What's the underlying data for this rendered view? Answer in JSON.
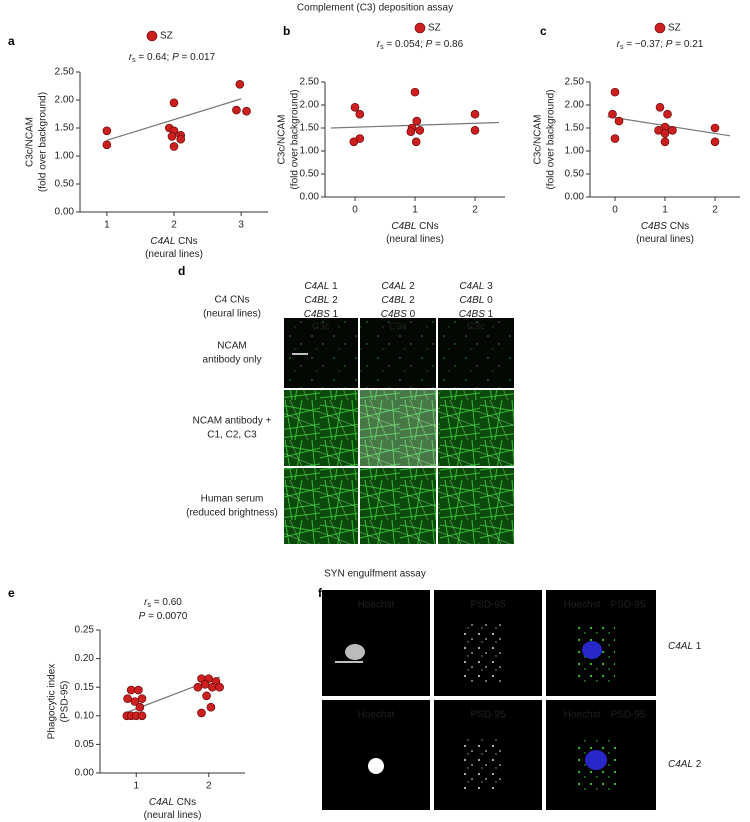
{
  "title": "Complement (C3) deposition assay",
  "chart_data": [
    {
      "type": "scatter",
      "panel": "a",
      "legend": true,
      "annotation": [
        [
          {
            "text": "r",
            "style": "italic"
          },
          {
            "text": "s",
            "style": "sub"
          },
          {
            "text": " = 0.64; "
          },
          {
            "text": "P",
            "style": "italic"
          },
          {
            "text": " = 0.017"
          }
        ]
      ],
      "xlabel": [
        [
          {
            "text": "C4AL",
            "style": "italic"
          },
          {
            "text": " CNs"
          }
        ],
        [
          {
            "text": "(neural lines)"
          }
        ]
      ],
      "ylabel": [
        "C3c/NCAM",
        "(fold over background)"
      ],
      "xlim": [
        0.6,
        3.4
      ],
      "xticks": [
        1,
        2,
        3
      ],
      "ylim": [
        0,
        2.5
      ],
      "yticks": [
        {
          "value": 0,
          "label": "0.00"
        },
        {
          "value": 0.5,
          "label": "0.50"
        },
        {
          "value": 1,
          "label": "1.00"
        },
        {
          "value": 1.5,
          "label": "1.50"
        },
        {
          "value": 2,
          "label": "2.00"
        },
        {
          "value": 2.5,
          "label": "2.50"
        }
      ],
      "series": [
        {
          "name": "SZ",
          "color": "#cc1f1f",
          "x": [
            1,
            1,
            2.0,
            1.93,
            2.0,
            2.1,
            1.97,
            2.1,
            2.0,
            2.98,
            2.93,
            3.08
          ],
          "values": [
            1.45,
            1.2,
            1.95,
            1.5,
            1.45,
            1.37,
            1.35,
            1.3,
            1.17,
            2.28,
            1.82,
            1.8
          ]
        }
      ],
      "trend": {
        "x": [
          1,
          3
        ],
        "values": [
          1.28,
          2.02
        ],
        "color": "#777777"
      }
    },
    {
      "type": "scatter",
      "panel": "b",
      "legend": true,
      "annotation": [
        [
          {
            "text": "r",
            "style": "italic"
          },
          {
            "text": "s",
            "style": "sub"
          },
          {
            "text": " = 0.054; "
          },
          {
            "text": "P",
            "style": "italic"
          },
          {
            "text": " = 0.86"
          }
        ]
      ],
      "xlabel": [
        [
          {
            "text": "C4BL",
            "style": "italic"
          },
          {
            "text": " CNs"
          }
        ],
        [
          {
            "text": "(neural lines)"
          }
        ]
      ],
      "ylabel": [
        "C3c/NCAM",
        "(fold over background)"
      ],
      "xlim": [
        -0.5,
        2.5
      ],
      "xticks": [
        0,
        1,
        2
      ],
      "ylim": [
        0,
        2.5
      ],
      "yticks": [
        {
          "value": 0,
          "label": "0.00"
        },
        {
          "value": 0.5,
          "label": "0.50"
        },
        {
          "value": 1,
          "label": "1.00"
        },
        {
          "value": 1.5,
          "label": "1.50"
        },
        {
          "value": 2,
          "label": "2.00"
        },
        {
          "value": 2.5,
          "label": "2.50"
        }
      ],
      "series": [
        {
          "name": "SZ",
          "color": "#cc1f1f",
          "x": [
            0,
            0.08,
            0.08,
            -0.02,
            1.0,
            1.03,
            0.95,
            1.08,
            0.93,
            1.02,
            2.0,
            2.0
          ],
          "values": [
            1.95,
            1.8,
            1.27,
            1.2,
            2.28,
            1.65,
            1.5,
            1.45,
            1.42,
            1.2,
            1.8,
            1.45
          ]
        }
      ],
      "trend": {
        "x": [
          -0.4,
          2.4
        ],
        "values": [
          1.5,
          1.62
        ],
        "color": "#777777"
      }
    },
    {
      "type": "scatter",
      "panel": "c",
      "legend": true,
      "annotation": [
        [
          {
            "text": "r",
            "style": "italic"
          },
          {
            "text": "s",
            "style": "sub"
          },
          {
            "text": " = −0.37; "
          },
          {
            "text": "P",
            "style": "italic"
          },
          {
            "text": " = 0.21"
          }
        ]
      ],
      "xlabel": [
        [
          {
            "text": "C4BS",
            "style": "italic"
          },
          {
            "text": " CNs"
          }
        ],
        [
          {
            "text": "(neural lines)"
          }
        ]
      ],
      "ylabel": [
        "C3c/NCAM",
        "(fold over background)"
      ],
      "xlim": [
        -0.5,
        2.5
      ],
      "xticks": [
        0,
        1,
        2
      ],
      "ylim": [
        0,
        2.5
      ],
      "yticks": [
        {
          "value": 0,
          "label": "0.00"
        },
        {
          "value": 0.5,
          "label": "0.50"
        },
        {
          "value": 1,
          "label": "1.00"
        },
        {
          "value": 1.5,
          "label": "1.50"
        },
        {
          "value": 2,
          "label": "2.00"
        },
        {
          "value": 2.5,
          "label": "2.50"
        }
      ],
      "series": [
        {
          "name": "SZ",
          "color": "#cc1f1f",
          "x": [
            0,
            -0.05,
            0.08,
            0,
            0.9,
            1.05,
            1.0,
            0.87,
            1.15,
            1.0,
            1.0,
            2.0,
            2.0
          ],
          "values": [
            2.28,
            1.8,
            1.65,
            1.27,
            1.95,
            1.8,
            1.52,
            1.45,
            1.45,
            1.38,
            1.2,
            1.5,
            1.2
          ]
        }
      ],
      "trend": {
        "x": [
          -0.15,
          2.3
        ],
        "values": [
          1.75,
          1.33
        ],
        "color": "#777777"
      }
    },
    {
      "type": "scatter",
      "panel": "e",
      "legend": false,
      "annotation": [
        [
          {
            "text": "r",
            "style": "italic"
          },
          {
            "text": "s",
            "style": "sub"
          },
          {
            "text": " = 0.60"
          }
        ],
        [
          {
            "text": "P",
            "style": "italic"
          },
          {
            "text": " = 0.0070"
          }
        ]
      ],
      "xlabel": [
        [
          {
            "text": "C4AL",
            "style": "italic"
          },
          {
            "text": " CNs"
          }
        ],
        [
          {
            "text": "(neural lines)"
          }
        ]
      ],
      "ylabel": [
        "Phagocytic index",
        "(PSD-95)"
      ],
      "xlim": [
        0.5,
        2.5
      ],
      "xticks": [
        1,
        2
      ],
      "ylim": [
        0,
        0.25
      ],
      "yticks": [
        {
          "value": 0,
          "label": "0.00"
        },
        {
          "value": 0.05,
          "label": "0.05"
        },
        {
          "value": 0.1,
          "label": "0.10"
        },
        {
          "value": 0.15,
          "label": "0.15"
        },
        {
          "value": 0.2,
          "label": "0.20"
        },
        {
          "value": 0.25,
          "label": "0.25"
        }
      ],
      "series": [
        {
          "color": "#cc1f1f",
          "x": [
            0.93,
            1.03,
            0.88,
            1.08,
            0.98,
            1.05,
            0.87,
            0.93,
            1.0,
            1.08,
            1.9,
            2.0,
            2.1,
            1.95,
            2.05,
            1.85,
            2.15,
            1.97,
            2.03,
            1.9
          ],
          "values": [
            0.145,
            0.145,
            0.13,
            0.13,
            0.125,
            0.115,
            0.1,
            0.1,
            0.1,
            0.1,
            0.165,
            0.165,
            0.16,
            0.155,
            0.15,
            0.15,
            0.15,
            0.135,
            0.115,
            0.105
          ]
        }
      ],
      "trend": {
        "x": [
          0.85,
          2.15
        ],
        "values": [
          0.105,
          0.168
        ],
        "color": "#777777"
      }
    }
  ],
  "panel_d": {
    "label": "d",
    "column_header": [
      "C4 CNs",
      "(neural lines)"
    ],
    "columns": [
      [
        [
          {
            "text": "C4AL",
            "style": "italic"
          },
          {
            "text": " 1"
          }
        ],
        [
          {
            "text": "C4BL",
            "style": "italic"
          },
          {
            "text": " 2"
          }
        ],
        [
          {
            "text": "C4BS",
            "style": "italic"
          },
          {
            "text": " 1"
          }
        ]
      ],
      [
        [
          {
            "text": "C4AL",
            "style": "italic"
          },
          {
            "text": " 2"
          }
        ],
        [
          {
            "text": "C4BL",
            "style": "italic"
          },
          {
            "text": " 2"
          }
        ],
        [
          {
            "text": "C4BS",
            "style": "italic"
          },
          {
            "text": " 0"
          }
        ]
      ],
      [
        [
          {
            "text": "C4AL",
            "style": "italic"
          },
          {
            "text": " 3"
          }
        ],
        [
          {
            "text": "C4BL",
            "style": "italic"
          },
          {
            "text": " 0"
          }
        ],
        [
          {
            "text": "C4BS",
            "style": "italic"
          },
          {
            "text": " 1"
          }
        ]
      ]
    ],
    "rows": [
      [
        "NCAM",
        "antibody only"
      ],
      [
        "NCAM antibody +",
        "C1, C2, C3"
      ],
      [
        "Human serum",
        "(reduced brightness)"
      ]
    ],
    "stain": "C3c"
  },
  "section_title": "SYN engulfment assay",
  "panel_f": {
    "label": "f",
    "columns": [
      "Hoechst",
      "PSD-95"
    ],
    "merged": [
      {
        "text": "Hoechst",
        "color": "#3a3aff"
      },
      {
        "text": "PSD-95",
        "color": "#2ecc2e"
      }
    ],
    "rows": [
      [
        {
          "text": "C4AL",
          "style": "italic"
        },
        {
          "text": " 1"
        }
      ],
      [
        {
          "text": "C4AL",
          "style": "italic"
        },
        {
          "text": " 2"
        }
      ]
    ]
  }
}
